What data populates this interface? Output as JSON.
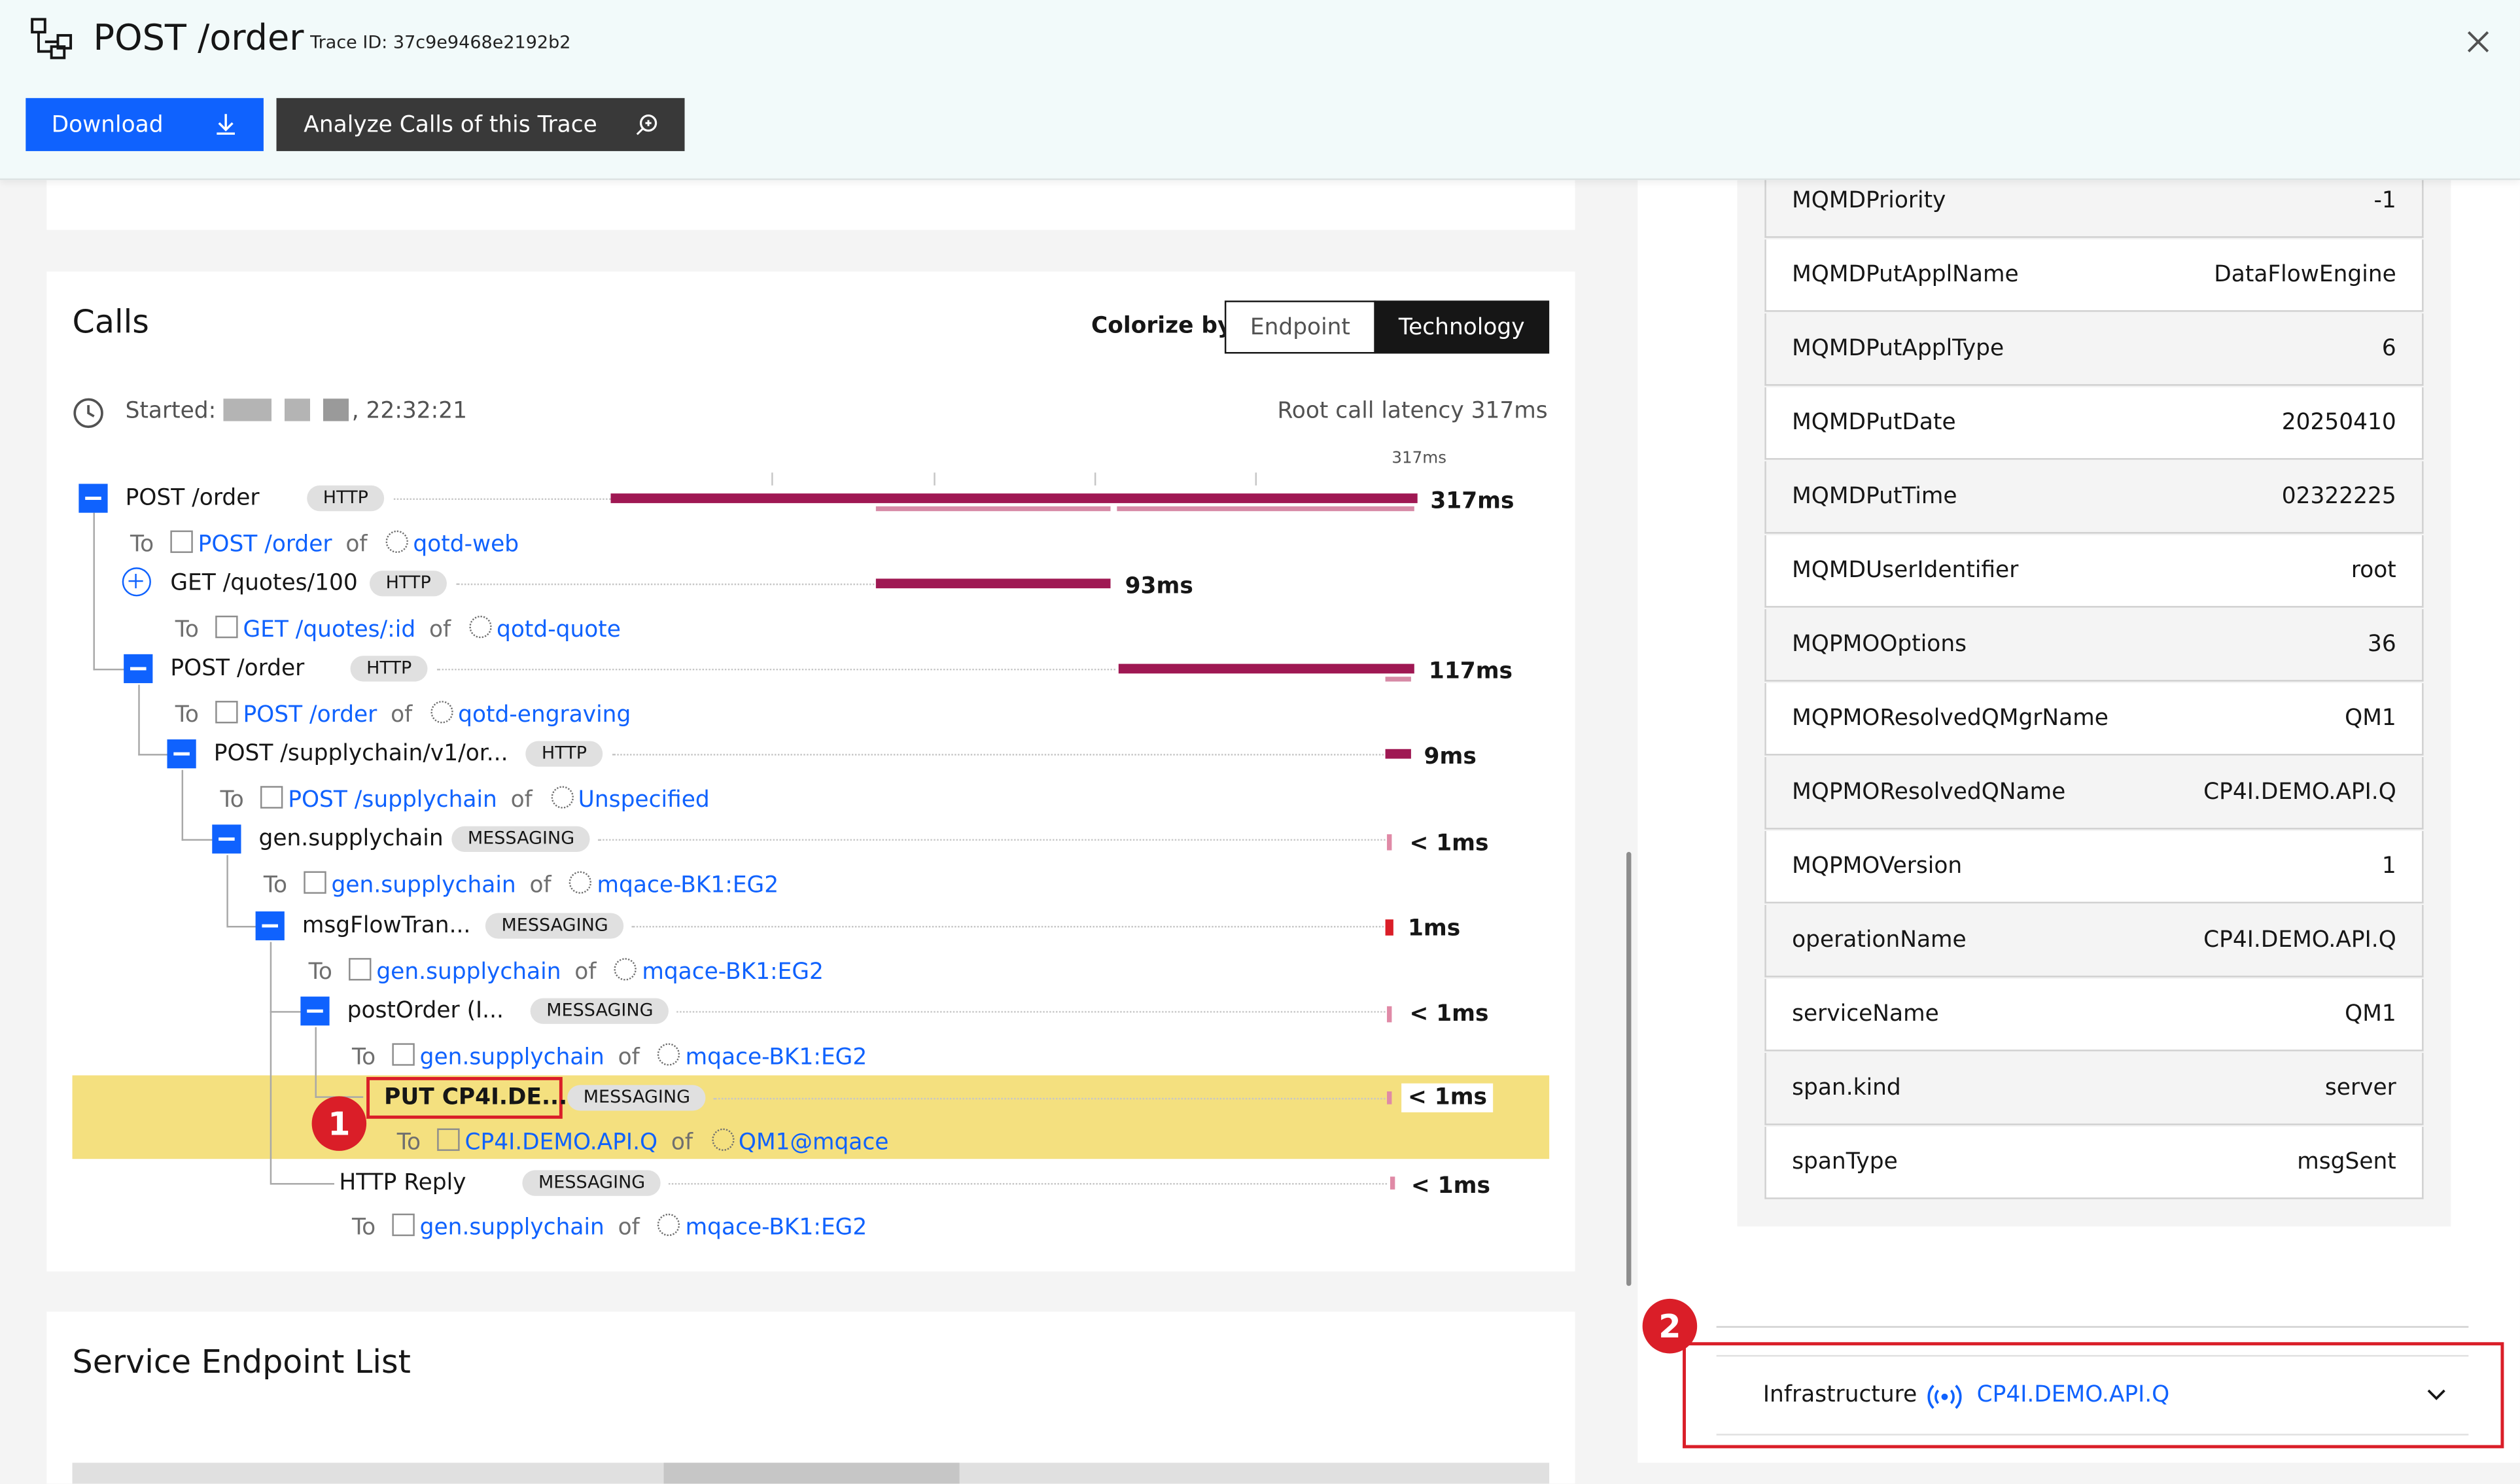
{
  "header": {
    "title": "POST /order",
    "trace_id": "Trace ID: 37c9e9468e2192b2",
    "download_label": "Download",
    "analyze_label": "Analyze Calls of this Trace"
  },
  "calls": {
    "title": "Calls",
    "colorize_label": "Colorize by",
    "colorize_options": [
      "Endpoint",
      "Technology"
    ],
    "colorize_selected": "Technology",
    "started_prefix": "Started:",
    "started_time": ", 22:32:21",
    "root_latency": "Root call latency 317ms",
    "scale_label": "317ms",
    "connector_to": "To",
    "connector_of": "of",
    "rows": [
      {
        "name": "POST /order",
        "tag": "HTTP",
        "duration": "317ms",
        "endpoint": "POST /order",
        "service": "qotd-web"
      },
      {
        "name": "GET /quotes/100",
        "tag": "HTTP",
        "duration": "93ms",
        "endpoint": "GET /quotes/:id",
        "service": "qotd-quote"
      },
      {
        "name": "POST /order",
        "tag": "HTTP",
        "duration": "117ms",
        "endpoint": "POST /order",
        "service": "qotd-engraving"
      },
      {
        "name": "POST /supplychain/v1/or...",
        "tag": "HTTP",
        "duration": "9ms",
        "endpoint": "POST /supplychain",
        "service": "Unspecified"
      },
      {
        "name": "gen.supplychain",
        "tag": "MESSAGING",
        "duration": "< 1ms",
        "endpoint": "gen.supplychain",
        "service": "mqace-BK1:EG2"
      },
      {
        "name": "msgFlowTran...",
        "tag": "MESSAGING",
        "duration": "1ms",
        "endpoint": "gen.supplychain",
        "service": "mqace-BK1:EG2"
      },
      {
        "name": "postOrder (I...",
        "tag": "MESSAGING",
        "duration": "< 1ms",
        "endpoint": "gen.supplychain",
        "service": "mqace-BK1:EG2"
      },
      {
        "name": "PUT CP4I.DE...",
        "tag": "MESSAGING",
        "duration": "< 1ms",
        "endpoint": "CP4I.DEMO.API.Q",
        "service": "QM1@mqace"
      },
      {
        "name": "HTTP Reply",
        "tag": "MESSAGING",
        "duration": "< 1ms",
        "endpoint": "gen.supplychain",
        "service": "mqace-BK1:EG2"
      }
    ]
  },
  "markers": [
    "1",
    "2"
  ],
  "service_endpoint_list": {
    "title": "Service Endpoint List"
  },
  "tags_table": [
    {
      "key": "MQMDPriority",
      "value": "-1"
    },
    {
      "key": "MQMDPutApplName",
      "value": "DataFlowEngine"
    },
    {
      "key": "MQMDPutApplType",
      "value": "6"
    },
    {
      "key": "MQMDPutDate",
      "value": "20250410"
    },
    {
      "key": "MQMDPutTime",
      "value": "02322225"
    },
    {
      "key": "MQMDUserIdentifier",
      "value": "root"
    },
    {
      "key": "MQPMOOptions",
      "value": "36"
    },
    {
      "key": "MQPMOResolvedQMgrName",
      "value": "QM1"
    },
    {
      "key": "MQPMOResolvedQName",
      "value": "CP4I.DEMO.API.Q"
    },
    {
      "key": "MQPMOVersion",
      "value": "1"
    },
    {
      "key": "operationName",
      "value": "CP4I.DEMO.API.Q"
    },
    {
      "key": "serviceName",
      "value": "QM1"
    },
    {
      "key": "span.kind",
      "value": "server"
    },
    {
      "key": "spanType",
      "value": "msgSent"
    }
  ],
  "infrastructure": {
    "label": "Infrastructure",
    "value": "CP4I.DEMO.API.Q"
  },
  "icons": [
    "trace-icon",
    "close-icon",
    "download-icon",
    "analyze-search-icon",
    "clock-icon",
    "collapse-icon",
    "expand-icon",
    "endpoint-icon",
    "service-icon",
    "infrastructure-signal-icon",
    "chevron-down-icon"
  ],
  "colors": {
    "accent": "#0f62fe",
    "bar": "#9f1853",
    "highlight": "#f4e07f",
    "annotation": "#da1e28"
  }
}
